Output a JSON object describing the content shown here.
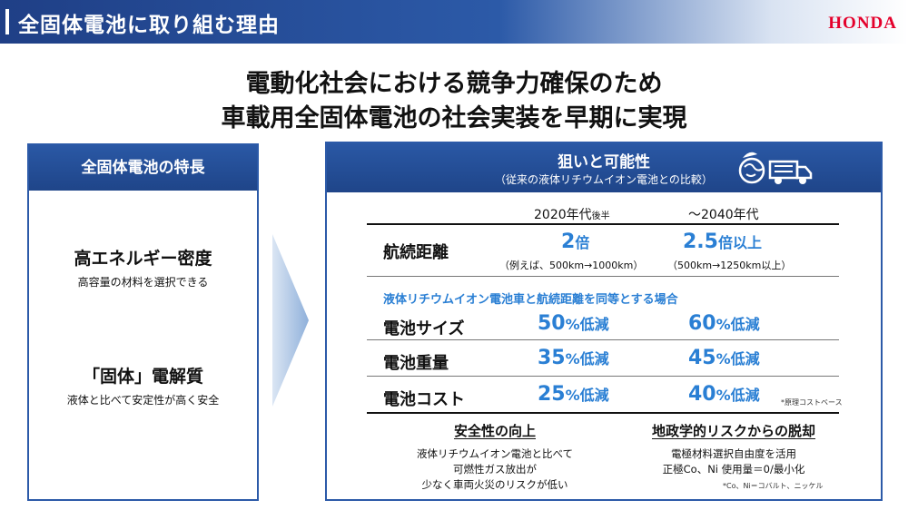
{
  "header": {
    "title": "全固体電池に取り組む理由",
    "logo": "HONDA"
  },
  "headline": {
    "line1": "電動化社会における競争力確保のため",
    "line2": "車載用全固体電池の社会実装を早期に実現"
  },
  "left_panel": {
    "heading": "全固体電池の特長",
    "features": [
      {
        "title": "高エネルギー密度",
        "subtitle": "高容量の材料を選択できる"
      },
      {
        "title": "「固体」電解質",
        "subtitle": "液体と比べて安定性が高く安全"
      }
    ]
  },
  "right_panel": {
    "heading": "狙いと可能性",
    "subheading": "（従来の液体リチウムイオン電池との比較）",
    "icon": "eco-truck-icon",
    "columns": {
      "col1_main": "2020年代",
      "col1_suffix": "後半",
      "col2": "～2040年代"
    },
    "range_row": {
      "label": "航続距離",
      "col1_value": "2",
      "col1_unit": "倍",
      "col1_note": "（例えば、500km→1000km）",
      "col2_value": "2.5",
      "col2_unit": "倍以上",
      "col2_note": "（500km→1250km以上）"
    },
    "section_label": "液体リチウムイオン電池車と航続距離を同等とする場合",
    "rows": [
      {
        "label": "電池サイズ",
        "col1_num": "50",
        "col2_num": "60",
        "unit": "%低減"
      },
      {
        "label": "電池重量",
        "col1_num": "35",
        "col2_num": "45",
        "unit": "%低減"
      },
      {
        "label": "電池コスト",
        "col1_num": "25",
        "col2_num": "40",
        "unit": "%低減"
      }
    ],
    "cost_footnote": "*原理コストベース",
    "safety": {
      "title": "安全性の向上",
      "lines": [
        "液体リチウムイオン電池と比べて",
        "可燃性ガス放出が",
        "少なく車両火災のリスクが低い"
      ]
    },
    "geopolitics": {
      "title": "地政学的リスクからの脱却",
      "lines": [
        "電極材料選択自由度を活用",
        "正極Co、Ni 使用量＝0/最小化"
      ],
      "footnote": "*Co、Ni＝コバルト、ニッケル"
    }
  },
  "colors": {
    "brand_blue": "#1f4589",
    "accent_blue": "#2a7fd4",
    "logo_red": "#e4002b"
  }
}
